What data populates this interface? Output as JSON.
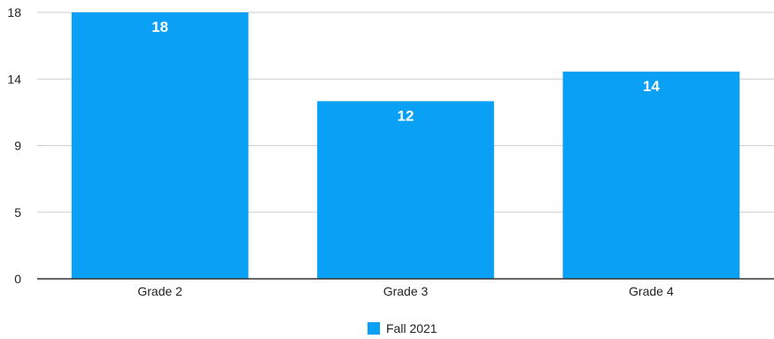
{
  "chart_data": {
    "type": "bar",
    "categories": [
      "Grade 2",
      "Grade 3",
      "Grade 4"
    ],
    "series": [
      {
        "name": "Fall 2021",
        "values": [
          18,
          12,
          14
        ],
        "data_labels": [
          "18",
          "12",
          "14"
        ]
      }
    ],
    "yticks": [
      "0",
      "5",
      "9",
      "14",
      "18"
    ],
    "ylim": [
      0,
      18
    ],
    "grid": true,
    "legend": "bottom",
    "colors": {
      "bar": "#0aa0f5",
      "grid": "#cfcfcf",
      "axis": "#333333",
      "text": "#222222"
    }
  }
}
